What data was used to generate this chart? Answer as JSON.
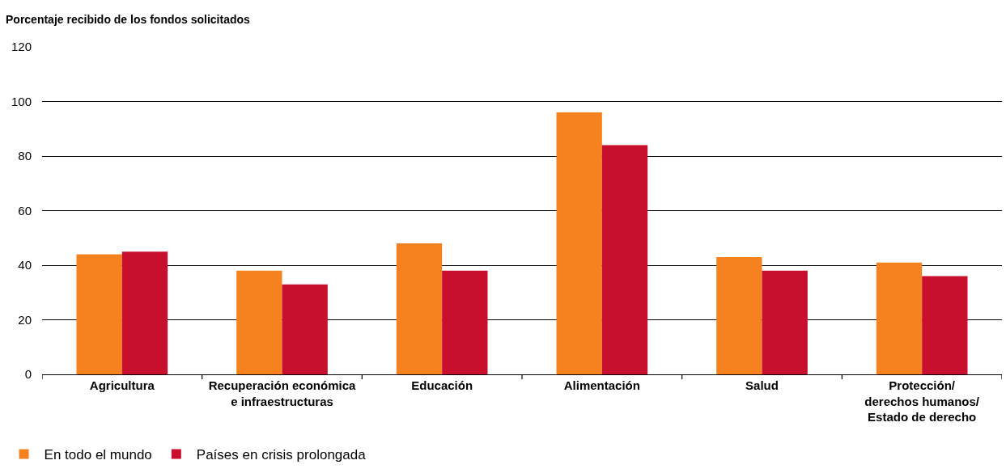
{
  "chart_data": {
    "type": "bar",
    "ylabel": "Porcentaje recibido de los fondos solicitados",
    "categories": [
      "Agricultura",
      "Recuperación económica e infraestructuras",
      "Educación",
      "Alimentación",
      "Salud",
      "Protección/derechos humanos/Estado de derecho"
    ],
    "series": [
      {
        "name": "En todo el mundo",
        "color": "#f5821f",
        "values": [
          44,
          38,
          48,
          96,
          43,
          41
        ]
      },
      {
        "name": "Países en crisis prolongada",
        "color": "#c8102e",
        "values": [
          45,
          33,
          38,
          84,
          38,
          36
        ]
      }
    ],
    "ylim": [
      0,
      120
    ],
    "yticks": [
      0,
      20,
      40,
      60,
      80,
      100,
      120
    ],
    "grid": "y",
    "legend": "bottom left"
  }
}
